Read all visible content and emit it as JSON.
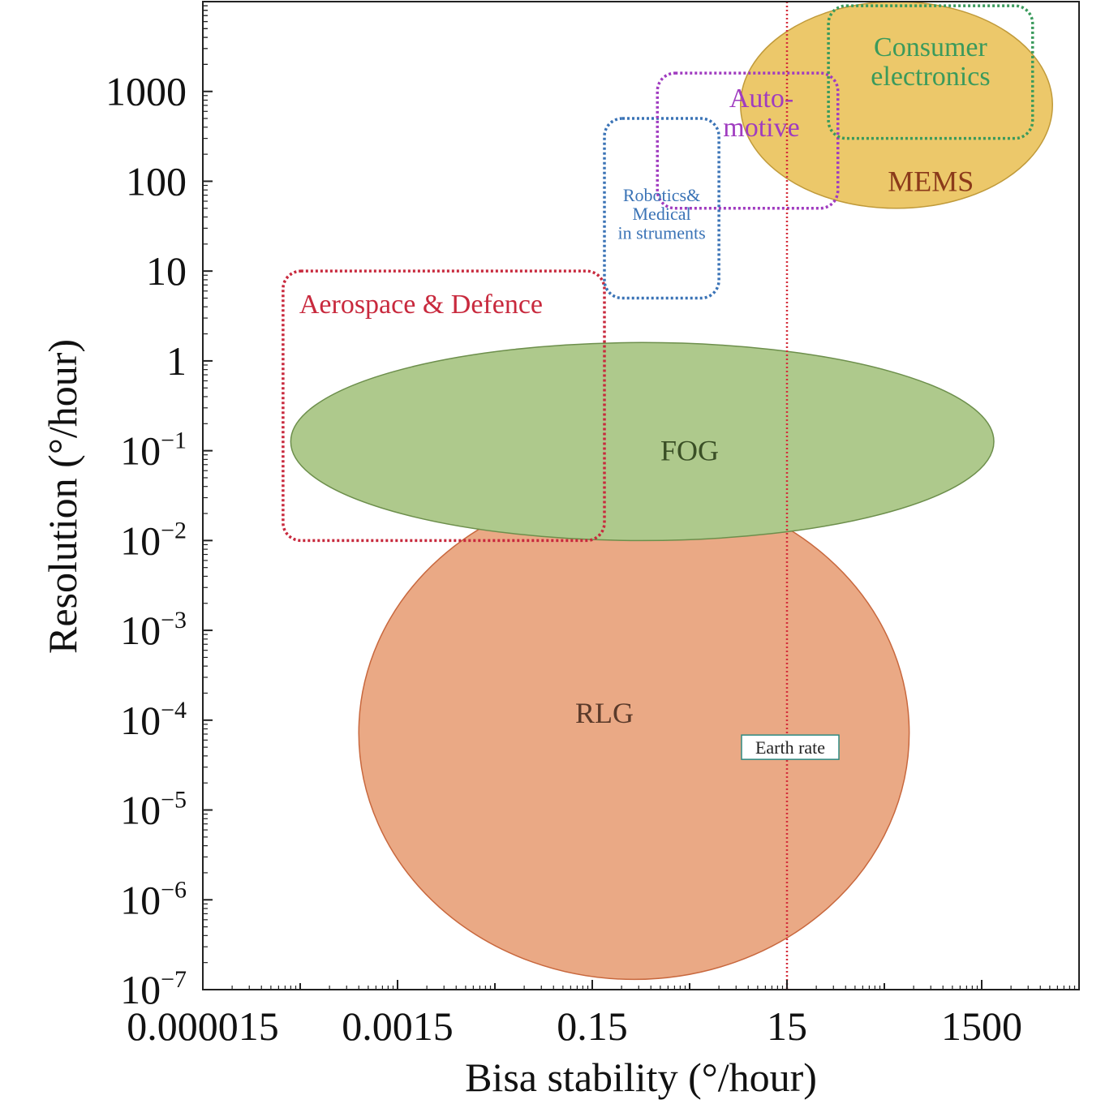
{
  "chart_data": {
    "type": "region-map",
    "xlabel": "Bisa stability (°/hour)",
    "ylabel": "Resolution (°/hour)",
    "x_scale": "log",
    "y_scale": "log",
    "xlim": [
      1.5e-05,
      15000
    ],
    "ylim": [
      1e-07,
      10000
    ],
    "grid": false,
    "x_ticks": [
      {
        "value": 1.5e-05,
        "label": "0.000015"
      },
      {
        "value": 0.0015,
        "label": "0.0015"
      },
      {
        "value": 0.15,
        "label": "0.15"
      },
      {
        "value": 15,
        "label": "15"
      },
      {
        "value": 1500,
        "label": "1500"
      }
    ],
    "y_ticks": [
      {
        "value": 1000,
        "base": "1000",
        "exp": ""
      },
      {
        "value": 100,
        "base": "100",
        "exp": ""
      },
      {
        "value": 10,
        "base": "10",
        "exp": ""
      },
      {
        "value": 1,
        "base": "1",
        "exp": ""
      },
      {
        "value": 0.1,
        "base": "10",
        "exp": "−1"
      },
      {
        "value": 0.01,
        "base": "10",
        "exp": "−2"
      },
      {
        "value": 0.001,
        "base": "10",
        "exp": "−3"
      },
      {
        "value": 0.0001,
        "base": "10",
        "exp": "−4"
      },
      {
        "value": 1e-05,
        "base": "10",
        "exp": "−5"
      },
      {
        "value": 1e-06,
        "base": "10",
        "exp": "−6"
      },
      {
        "value": 1e-07,
        "base": "10",
        "exp": "−7"
      }
    ],
    "technologies": [
      {
        "label": "RLG",
        "shape": "ellipse",
        "x_range": [
          0.0006,
          270
        ],
        "y_range": [
          1.3e-07,
          0.04
        ],
        "color": "#eaa985",
        "stroke": "#c8683e",
        "text_color": "#5a3a2a",
        "label_at": [
          0.2,
          0.00012
        ]
      },
      {
        "label": "FOG",
        "shape": "ellipse",
        "x_range": [
          0.00012,
          2000
        ],
        "y_range": [
          0.01,
          1.6
        ],
        "color": "#aec98c",
        "stroke": "#6d8f4c",
        "text_color": "#3a4f26",
        "label_at": [
          1.5,
          0.1
        ]
      },
      {
        "label": "MEMS",
        "shape": "ellipse",
        "x_range": [
          5,
          8000
        ],
        "y_range": [
          50,
          10000
        ],
        "color": "#ecc86a",
        "stroke": "#c09a3a",
        "text_color": "#8b3a1a",
        "label_at": [
          450,
          100
        ]
      }
    ],
    "applications": [
      {
        "label": "Aerospace & Defence",
        "lines": [
          "Aerospace & Defence"
        ],
        "x_range": [
          0.0001,
          0.2
        ],
        "y_range": [
          0.01,
          10
        ],
        "color": "#c8293d",
        "font_size": 34
      },
      {
        "label": "Robotics& Medical in struments",
        "lines": [
          "Robotics&",
          "Medical",
          "in struments"
        ],
        "x_range": [
          0.2,
          3
        ],
        "y_range": [
          5,
          500
        ],
        "color": "#3a73b6",
        "font_size": 22
      },
      {
        "label": "Auto- motive",
        "lines": [
          "Auto-",
          "motive"
        ],
        "x_range": [
          0.7,
          50
        ],
        "y_range": [
          50,
          1600
        ],
        "color": "#a03cc0",
        "font_size": 34
      },
      {
        "label": "Consumer electronics",
        "lines": [
          "Consumer",
          "electronics"
        ],
        "x_range": [
          40,
          5000
        ],
        "y_range": [
          300,
          9000
        ],
        "color": "#3a9a5c",
        "font_size": 34
      }
    ],
    "reference_line": {
      "label": "Earth rate",
      "x": 15,
      "color": "#d42d3a",
      "label_y": 5e-05
    }
  }
}
